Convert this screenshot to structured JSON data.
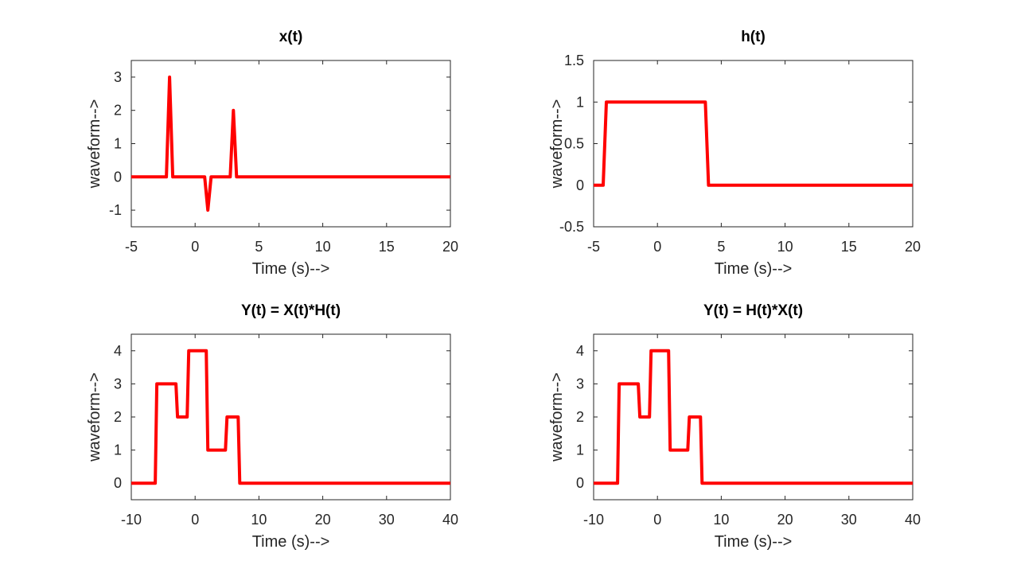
{
  "chart_data": [
    {
      "type": "line",
      "title": "x(t)",
      "xlabel": "Time (s)-->",
      "ylabel": "waveform-->",
      "xlim": [
        -5,
        20
      ],
      "ylim": [
        -1.5,
        3.5
      ],
      "xticks": [
        -5,
        0,
        5,
        10,
        15,
        20
      ],
      "xtick_labels": [
        "-5",
        "0",
        "5",
        "10",
        "15",
        "20"
      ],
      "yticks": [
        -1,
        0,
        1,
        2,
        3
      ],
      "ytick_labels": [
        "-1",
        "0",
        "1",
        "2",
        "3"
      ],
      "grid": false,
      "series": [
        {
          "color": "#ff0000",
          "x": [
            -5,
            -2.25,
            -2,
            -1.75,
            0.75,
            1,
            1.25,
            2.75,
            3,
            3.25,
            20
          ],
          "y": [
            0,
            0,
            3,
            0,
            0,
            -1,
            0,
            0,
            2,
            0,
            0
          ]
        }
      ]
    },
    {
      "type": "line",
      "title": "h(t)",
      "xlabel": "Time (s)-->",
      "ylabel": "waveform-->",
      "xlim": [
        -5,
        20
      ],
      "ylim": [
        -0.5,
        1.5
      ],
      "xticks": [
        -5,
        0,
        5,
        10,
        15,
        20
      ],
      "xtick_labels": [
        "-5",
        "0",
        "5",
        "10",
        "15",
        "20"
      ],
      "yticks": [
        -0.5,
        0,
        0.5,
        1,
        1.5
      ],
      "ytick_labels": [
        "-0.5",
        "0",
        "0.5",
        "1",
        "1.5"
      ],
      "grid": false,
      "series": [
        {
          "color": "#ff0000",
          "x": [
            -5,
            -4.25,
            -4,
            3.75,
            4,
            20
          ],
          "y": [
            0,
            0,
            1,
            1,
            0,
            0
          ]
        }
      ]
    },
    {
      "type": "line",
      "title": "Y(t) = X(t)*H(t)",
      "xlabel": "Time (s)-->",
      "ylabel": "waveform-->",
      "xlim": [
        -10,
        40
      ],
      "ylim": [
        -0.5,
        4.5
      ],
      "xticks": [
        -10,
        0,
        10,
        20,
        30,
        40
      ],
      "xtick_labels": [
        "-10",
        "0",
        "10",
        "20",
        "30",
        "40"
      ],
      "yticks": [
        0,
        1,
        2,
        3,
        4
      ],
      "ytick_labels": [
        "0",
        "1",
        "2",
        "3",
        "4"
      ],
      "grid": false,
      "series": [
        {
          "color": "#ff0000",
          "x": [
            -10,
            -6.25,
            -6,
            -3,
            -2.75,
            -1.25,
            -1,
            1.75,
            2,
            4.75,
            5,
            6.75,
            7,
            40
          ],
          "y": [
            0,
            0,
            3,
            3,
            2,
            2,
            4,
            4,
            1,
            1,
            2,
            2,
            0,
            0
          ]
        }
      ]
    },
    {
      "type": "line",
      "title": "Y(t) = H(t)*X(t)",
      "xlabel": "Time (s)-->",
      "ylabel": "waveform-->",
      "xlim": [
        -10,
        40
      ],
      "ylim": [
        -0.5,
        4.5
      ],
      "xticks": [
        -10,
        0,
        10,
        20,
        30,
        40
      ],
      "xtick_labels": [
        "-10",
        "0",
        "10",
        "20",
        "30",
        "40"
      ],
      "yticks": [
        0,
        1,
        2,
        3,
        4
      ],
      "ytick_labels": [
        "0",
        "1",
        "2",
        "3",
        "4"
      ],
      "grid": false,
      "series": [
        {
          "color": "#ff0000",
          "x": [
            -10,
            -6.25,
            -6,
            -3,
            -2.75,
            -1.25,
            -1,
            1.75,
            2,
            4.75,
            5,
            6.75,
            7,
            40
          ],
          "y": [
            0,
            0,
            3,
            3,
            2,
            2,
            4,
            4,
            1,
            1,
            2,
            2,
            0,
            0
          ]
        }
      ]
    }
  ]
}
